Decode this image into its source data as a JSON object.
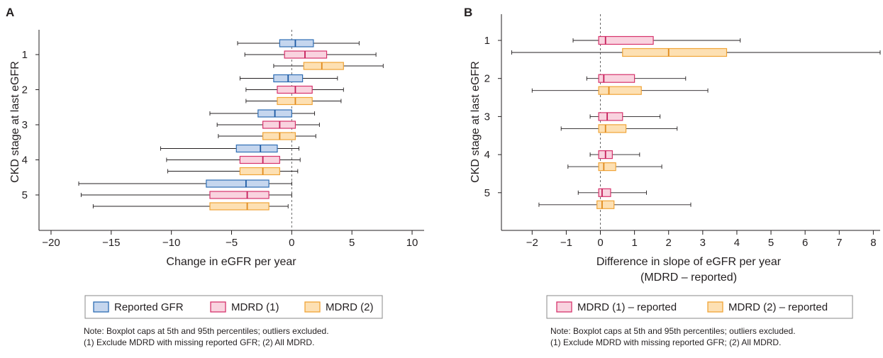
{
  "colors": {
    "reported": {
      "fill": "#c5d6ee",
      "stroke": "#2e6db4",
      "median": "#1d5aa3"
    },
    "mdrd1": {
      "fill": "#f9d3df",
      "stroke": "#d6336c",
      "median": "#c41e5a"
    },
    "mdrd2": {
      "fill": "#fde0b3",
      "stroke": "#f0a437",
      "median": "#e08a1c"
    },
    "axis": "#231f20",
    "zero_line": "#666666"
  },
  "chart_data": [
    {
      "panel": "A",
      "type": "boxplot",
      "orientation": "horizontal",
      "xlabel": "Change in eGFR per year",
      "ylabel": "CKD stage at last eGFR",
      "xlim": [
        -21,
        11
      ],
      "xticks": [
        -20,
        -15,
        -10,
        -5,
        0,
        5,
        10
      ],
      "xtick_labels": [
        "−20",
        "−15",
        "−10",
        "−5",
        "0",
        "5",
        "10"
      ],
      "categories": [
        "1",
        "2",
        "3",
        "4",
        "5"
      ],
      "zero_line": 0,
      "series": [
        {
          "name": "Reported GFR",
          "color_key": "reported",
          "boxes": [
            {
              "p5": -4.5,
              "q1": -1.0,
              "median": 0.3,
              "q3": 1.8,
              "p95": 5.6
            },
            {
              "p5": -4.3,
              "q1": -1.5,
              "median": -0.3,
              "q3": 0.9,
              "p95": 3.8
            },
            {
              "p5": -6.8,
              "q1": -2.8,
              "median": -1.4,
              "q3": 0.0,
              "p95": 1.9
            },
            {
              "p5": -10.9,
              "q1": -4.6,
              "median": -2.6,
              "q3": -1.2,
              "p95": 0.6
            },
            {
              "p5": -17.7,
              "q1": -7.1,
              "median": -3.8,
              "q3": -1.9,
              "p95": 0.0
            }
          ]
        },
        {
          "name": "MDRD (1)",
          "color_key": "mdrd1",
          "boxes": [
            {
              "p5": -3.9,
              "q1": -0.6,
              "median": 1.1,
              "q3": 2.9,
              "p95": 7.0
            },
            {
              "p5": -3.8,
              "q1": -1.2,
              "median": 0.3,
              "q3": 1.7,
              "p95": 4.3
            },
            {
              "p5": -6.2,
              "q1": -2.4,
              "median": -1.0,
              "q3": 0.3,
              "p95": 2.3
            },
            {
              "p5": -10.4,
              "q1": -4.3,
              "median": -2.4,
              "q3": -1.0,
              "p95": 0.7
            },
            {
              "p5": -17.5,
              "q1": -6.8,
              "median": -3.7,
              "q3": -1.9,
              "p95": 0.0
            }
          ]
        },
        {
          "name": "MDRD (2)",
          "color_key": "mdrd2",
          "boxes": [
            {
              "p5": -1.5,
              "q1": 1.0,
              "median": 2.5,
              "q3": 4.3,
              "p95": 7.6
            },
            {
              "p5": -3.8,
              "q1": -1.2,
              "median": 0.3,
              "q3": 1.7,
              "p95": 4.1
            },
            {
              "p5": -6.1,
              "q1": -2.4,
              "median": -1.0,
              "q3": 0.3,
              "p95": 2.0
            },
            {
              "p5": -10.3,
              "q1": -4.3,
              "median": -2.4,
              "q3": -1.0,
              "p95": 0.5
            },
            {
              "p5": -16.5,
              "q1": -6.8,
              "median": -3.7,
              "q3": -1.9,
              "p95": -0.3
            }
          ]
        }
      ],
      "legend": [
        {
          "label": "Reported GFR",
          "color_key": "reported"
        },
        {
          "label": "MDRD (1)",
          "color_key": "mdrd1"
        },
        {
          "label": "MDRD (2)",
          "color_key": "mdrd2"
        }
      ],
      "note": [
        "Note: Boxplot caps at 5th and 95th percentiles; outliers excluded.",
        "(1) Exclude MDRD with missing reported GFR; (2) All MDRD."
      ]
    },
    {
      "panel": "B",
      "type": "boxplot",
      "orientation": "horizontal",
      "xlabel": "Difference in slope of eGFR per year",
      "xlabel2": "(MDRD – reported)",
      "ylabel": "CKD stage at last eGFR",
      "xlim": [
        -2.9,
        8.2
      ],
      "xticks": [
        -2,
        -1,
        0,
        1,
        2,
        3,
        4,
        5,
        6,
        7,
        8
      ],
      "xtick_labels": [
        "−2",
        "−1",
        "0",
        "1",
        "2",
        "3",
        "4",
        "5",
        "6",
        "7",
        "8"
      ],
      "categories": [
        "1",
        "2",
        "3",
        "4",
        "5"
      ],
      "zero_line": 0,
      "series": [
        {
          "name": "MDRD (1) – reported",
          "color_key": "mdrd1",
          "boxes": [
            {
              "p5": -0.8,
              "q1": -0.05,
              "median": 0.15,
              "q3": 1.55,
              "p95": 4.1
            },
            {
              "p5": -0.4,
              "q1": -0.05,
              "median": 0.1,
              "q3": 1.0,
              "p95": 2.5
            },
            {
              "p5": -0.3,
              "q1": -0.05,
              "median": 0.2,
              "q3": 0.65,
              "p95": 1.75
            },
            {
              "p5": -0.3,
              "q1": -0.05,
              "median": 0.15,
              "q3": 0.35,
              "p95": 1.15
            },
            {
              "p5": -0.65,
              "q1": -0.05,
              "median": 0.05,
              "q3": 0.3,
              "p95": 1.35
            }
          ]
        },
        {
          "name": "MDRD (2) – reported",
          "color_key": "mdrd2",
          "boxes": [
            {
              "p5": -2.6,
              "q1": 0.65,
              "median": 2.0,
              "q3": 3.7,
              "p95": 8.2
            },
            {
              "p5": -2.0,
              "q1": -0.05,
              "median": 0.25,
              "q3": 1.2,
              "p95": 3.15
            },
            {
              "p5": -1.15,
              "q1": -0.05,
              "median": 0.15,
              "q3": 0.75,
              "p95": 2.25
            },
            {
              "p5": -0.95,
              "q1": -0.05,
              "median": 0.1,
              "q3": 0.45,
              "p95": 1.8
            },
            {
              "p5": -1.8,
              "q1": -0.1,
              "median": 0.05,
              "q3": 0.4,
              "p95": 2.65
            }
          ]
        }
      ],
      "legend": [
        {
          "label": "MDRD (1) – reported",
          "color_key": "mdrd1"
        },
        {
          "label": "MDRD (2) – reported",
          "color_key": "mdrd2"
        }
      ],
      "note": [
        "Note: Boxplot caps at 5th and 95th percentiles; outliers excluded.",
        "(1) Exclude MDRD with missing reported GFR; (2) All MDRD."
      ]
    }
  ]
}
